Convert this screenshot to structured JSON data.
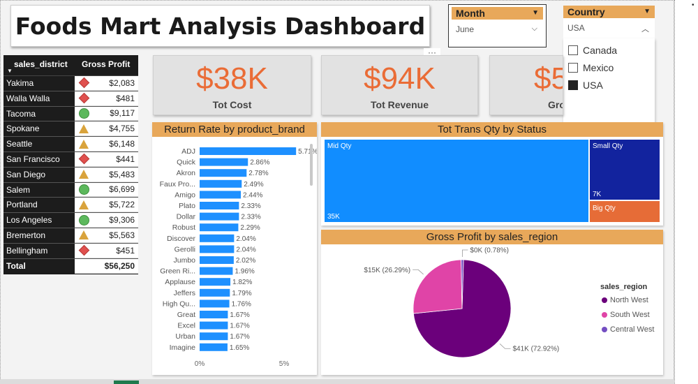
{
  "title": "Foods Mart Analysis Dashboard",
  "filters": {
    "month": {
      "label": "Month",
      "selected": "June"
    },
    "country": {
      "label": "Country",
      "selected": "USA",
      "options": [
        {
          "label": "Canada",
          "checked": false
        },
        {
          "label": "Mexico",
          "checked": false
        },
        {
          "label": "USA",
          "checked": true
        }
      ]
    }
  },
  "ellipsis": "···",
  "district_table": {
    "headers": {
      "district": "sales_district",
      "profit": "Gross Profit"
    },
    "rows": [
      {
        "district": "Yakima",
        "profit": "$2,083",
        "indicator": "diamond"
      },
      {
        "district": "Walla Walla",
        "profit": "$481",
        "indicator": "diamond"
      },
      {
        "district": "Tacoma",
        "profit": "$9,117",
        "indicator": "circle"
      },
      {
        "district": "Spokane",
        "profit": "$4,755",
        "indicator": "triangle"
      },
      {
        "district": "Seattle",
        "profit": "$6,148",
        "indicator": "triangle"
      },
      {
        "district": "San Francisco",
        "profit": "$441",
        "indicator": "diamond"
      },
      {
        "district": "San Diego",
        "profit": "$5,483",
        "indicator": "triangle"
      },
      {
        "district": "Salem",
        "profit": "$6,699",
        "indicator": "circle"
      },
      {
        "district": "Portland",
        "profit": "$5,722",
        "indicator": "triangle"
      },
      {
        "district": "Los Angeles",
        "profit": "$9,306",
        "indicator": "circle"
      },
      {
        "district": "Bremerton",
        "profit": "$5,563",
        "indicator": "triangle"
      },
      {
        "district": "Bellingham",
        "profit": "$451",
        "indicator": "diamond"
      }
    ],
    "total_label": "Total",
    "total_value": "$56,250"
  },
  "kpis": [
    {
      "value": "$38K",
      "label": "Tot Cost"
    },
    {
      "value": "$94K",
      "label": "Tot Revenue"
    },
    {
      "value": "$5",
      "label": "Gro"
    }
  ],
  "colors": {
    "accent_orange": "#ea6c36",
    "header_tan": "#e8a85a",
    "bar_blue": "#1e90ff",
    "treemap_blue": "#118dff",
    "treemap_navy": "#12239e",
    "treemap_orange": "#e66c37",
    "pie_north_west": "#6b007b",
    "pie_south_west": "#e044a7",
    "pie_central_west": "#744ec2"
  },
  "chart_data": [
    {
      "type": "bar",
      "title": "Return Rate by product_brand",
      "orientation": "horizontal",
      "categories": [
        "ADJ",
        "Quick",
        "Akron",
        "Faux Pro...",
        "Amigo",
        "Plato",
        "Dollar",
        "Robust",
        "Discover",
        "Gerolli",
        "Jumbo",
        "Green Ri...",
        "Applause",
        "Jeffers",
        "High Qu...",
        "Great",
        "Excel",
        "Urban",
        "Imagine"
      ],
      "values": [
        5.71,
        2.86,
        2.78,
        2.49,
        2.44,
        2.33,
        2.33,
        2.29,
        2.04,
        2.04,
        2.02,
        1.96,
        1.82,
        1.79,
        1.76,
        1.67,
        1.67,
        1.67,
        1.65
      ],
      "value_labels": [
        "5.71%",
        "2.86%",
        "2.78%",
        "2.49%",
        "2.44%",
        "2.33%",
        "2.33%",
        "2.29%",
        "2.04%",
        "2.04%",
        "2.02%",
        "1.96%",
        "1.82%",
        "1.79%",
        "1.76%",
        "1.67%",
        "1.67%",
        "1.67%",
        "1.65%"
      ],
      "x_ticks": [
        "0%",
        "5%"
      ],
      "xlim": [
        0,
        6
      ]
    },
    {
      "type": "treemap",
      "title": "Tot Trans Qty by Status",
      "items": [
        {
          "name": "Mid Qty",
          "label": "35K",
          "value": 35000
        },
        {
          "name": "Small Qty",
          "label": "7K",
          "value": 7000
        },
        {
          "name": "Big Qty",
          "label": "",
          "value": 2500
        }
      ]
    },
    {
      "type": "pie",
      "title": "Gross Profit by sales_region",
      "legend_title": "sales_region",
      "legend_position": "right",
      "slices": [
        {
          "name": "North West",
          "value": 72.92,
          "label": "$41K (72.92%)"
        },
        {
          "name": "South West",
          "value": 26.29,
          "label": "$15K (26.29%)"
        },
        {
          "name": "Central West",
          "value": 0.78,
          "label": "$0K (0.78%)"
        }
      ]
    }
  ]
}
